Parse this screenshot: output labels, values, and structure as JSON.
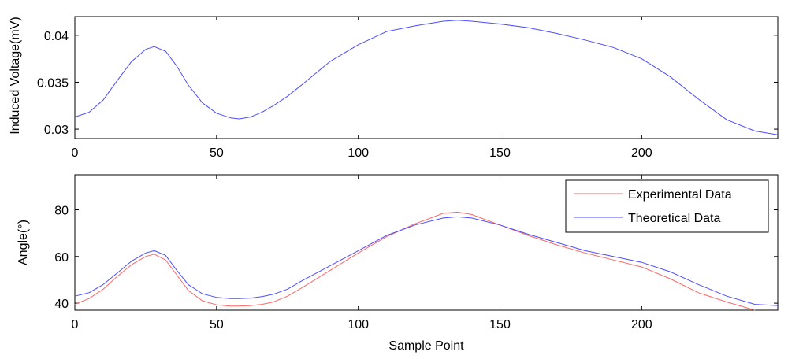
{
  "chart_data": [
    {
      "type": "line",
      "title": "",
      "xlabel": "",
      "ylabel": "Induced Voltage(mV)",
      "xlim": [
        0,
        248
      ],
      "ylim": [
        0.029,
        0.042
      ],
      "xticks": [
        0,
        50,
        100,
        150,
        200
      ],
      "xtick_labels": [
        "0",
        "50",
        "100",
        "150",
        "200"
      ],
      "yticks": [
        0.03,
        0.035,
        0.04
      ],
      "ytick_labels": [
        "0.03",
        "0.035",
        "0.04"
      ],
      "grid": false,
      "series": [
        {
          "color": "#4c4cff",
          "x": [
            0,
            5,
            10,
            15,
            20,
            25,
            28,
            32,
            36,
            40,
            45,
            50,
            55,
            58,
            62,
            66,
            70,
            75,
            80,
            90,
            100,
            110,
            120,
            130,
            135,
            140,
            150,
            160,
            170,
            180,
            190,
            200,
            210,
            220,
            230,
            240,
            248
          ],
          "y": [
            0.0313,
            0.0318,
            0.0331,
            0.0352,
            0.0372,
            0.0385,
            0.0388,
            0.0383,
            0.0367,
            0.0347,
            0.0328,
            0.0317,
            0.0312,
            0.0311,
            0.0313,
            0.0318,
            0.0325,
            0.0335,
            0.0347,
            0.0372,
            0.039,
            0.0404,
            0.041,
            0.0415,
            0.0416,
            0.0415,
            0.0412,
            0.0408,
            0.0402,
            0.0395,
            0.0387,
            0.0375,
            0.0356,
            0.0332,
            0.031,
            0.0298,
            0.0294
          ]
        }
      ]
    },
    {
      "type": "line",
      "title": "",
      "xlabel": "Sample Point",
      "ylabel": "Angle(°)",
      "xlim": [
        0,
        248
      ],
      "ylim": [
        37,
        95
      ],
      "xticks": [
        0,
        50,
        100,
        150,
        200
      ],
      "xtick_labels": [
        "0",
        "50",
        "100",
        "150",
        "200"
      ],
      "yticks": [
        40,
        60,
        80
      ],
      "ytick_labels": [
        "40",
        "60",
        "80"
      ],
      "grid": false,
      "legend": "top-right",
      "series": [
        {
          "name": "Experimental Data",
          "color": "#ff6666",
          "x": [
            0,
            5,
            10,
            15,
            20,
            25,
            28,
            32,
            36,
            40,
            45,
            50,
            55,
            58,
            62,
            66,
            70,
            75,
            80,
            90,
            100,
            110,
            120,
            130,
            135,
            140,
            150,
            160,
            170,
            180,
            190,
            200,
            210,
            220,
            230,
            240
          ],
          "y": [
            39.5,
            42,
            46,
            51.5,
            56.5,
            60,
            61,
            58.5,
            52,
            45.5,
            41,
            39.3,
            38.8,
            38.8,
            39,
            39.5,
            40.5,
            43,
            46.5,
            54,
            61.5,
            68.5,
            74,
            78.5,
            79,
            78,
            73.5,
            69,
            65,
            61.5,
            58.5,
            55.5,
            50.5,
            44.5,
            40.5,
            37
          ]
        },
        {
          "name": "Theoretical Data",
          "color": "#4c4cff",
          "x": [
            0,
            5,
            10,
            15,
            20,
            25,
            28,
            32,
            36,
            40,
            45,
            50,
            55,
            58,
            62,
            66,
            70,
            75,
            80,
            90,
            100,
            110,
            120,
            130,
            135,
            140,
            150,
            160,
            170,
            180,
            190,
            200,
            210,
            220,
            230,
            240,
            248
          ],
          "y": [
            43,
            44.5,
            48,
            53,
            58,
            61.5,
            62.5,
            60.5,
            54,
            48,
            44,
            42.5,
            42,
            42,
            42.2,
            42.8,
            43.8,
            46,
            49.5,
            56,
            62.5,
            69,
            73.5,
            76.5,
            77,
            76.5,
            73.5,
            69.5,
            66,
            62.5,
            60,
            57.5,
            53.5,
            48,
            43,
            39.5,
            39
          ]
        }
      ]
    }
  ]
}
